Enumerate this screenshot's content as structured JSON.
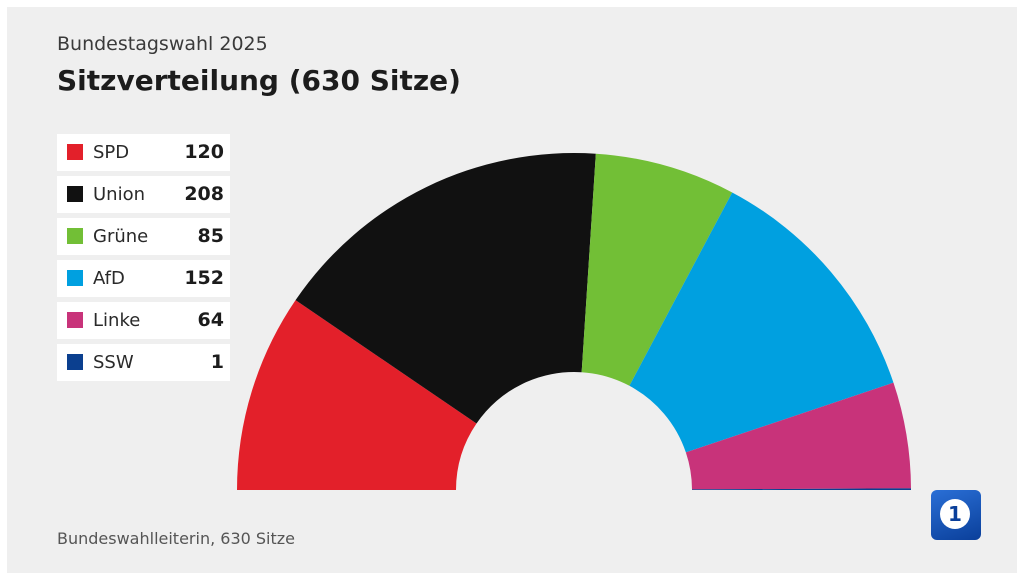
{
  "header": {
    "subtitle": "Bundestagswahl 2025",
    "title": "Sitzverteilung (630 Sitze)"
  },
  "source": "Bundeswahlleiterin, 630 Sitze",
  "logo": {
    "text": "1",
    "icon": "ard-das-erste-logo"
  },
  "chart_data": {
    "type": "pie",
    "subtype": "half-donut",
    "total": 630,
    "series": [
      {
        "name": "SPD",
        "value": 120,
        "color": "#e3202a"
      },
      {
        "name": "Union",
        "value": 208,
        "color": "#111111"
      },
      {
        "name": "Grüne",
        "value": 85,
        "color": "#72bf36"
      },
      {
        "name": "AfD",
        "value": 152,
        "color": "#00a0e0"
      },
      {
        "name": "Linke",
        "value": 64,
        "color": "#c8337a"
      },
      {
        "name": "SSW",
        "value": 1,
        "color": "#0b3f8f"
      }
    ],
    "legend_position": "left"
  }
}
